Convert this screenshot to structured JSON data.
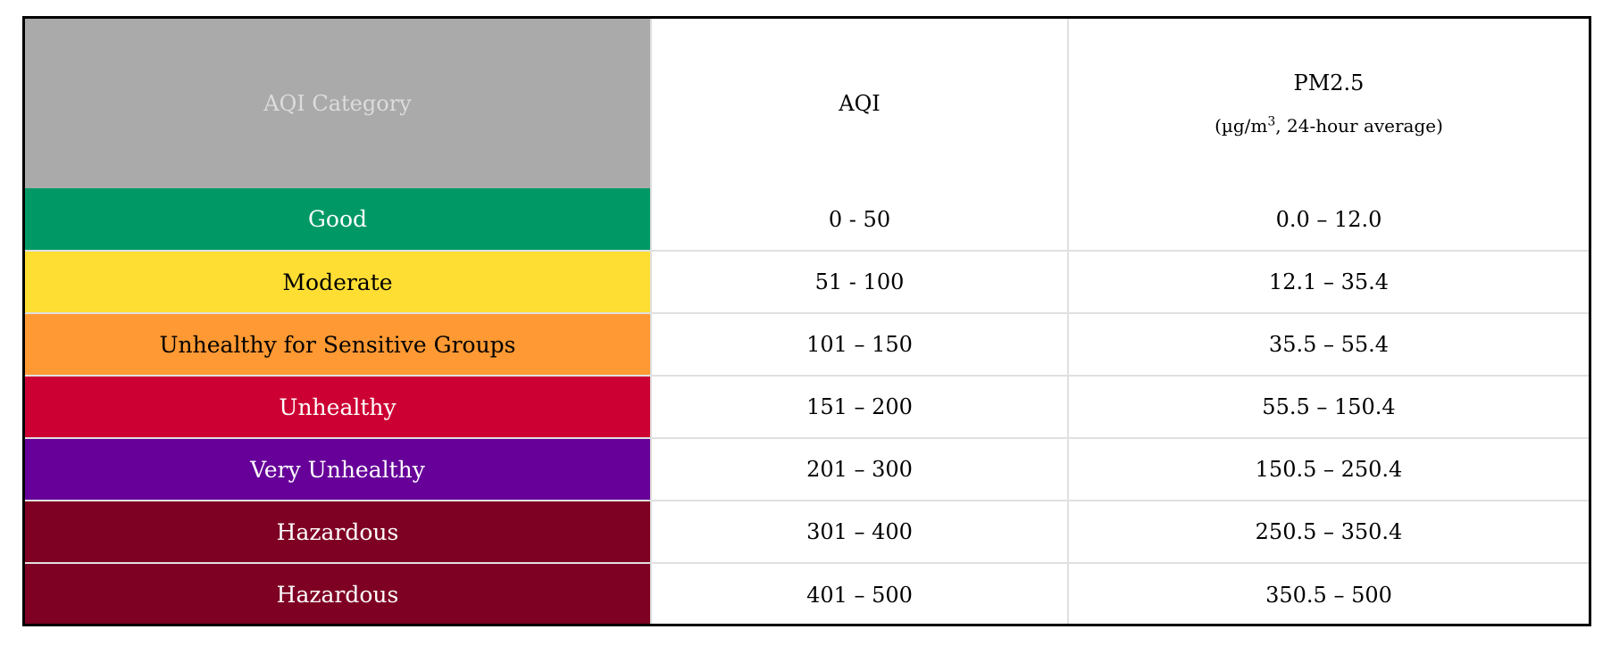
{
  "table": {
    "headers": {
      "category": "AQI Category",
      "aqi": "AQI",
      "pm25_title": "PM2.5",
      "pm25_unit_pre": "(µg/m",
      "pm25_unit_sup": "3",
      "pm25_unit_post": ", 24-hour average)"
    },
    "rows": [
      {
        "category": "Good",
        "aqi": "0 - 50",
        "pm25": "0.0 – 12.0",
        "bg": "#009966",
        "fg": "#ffffff"
      },
      {
        "category": "Moderate",
        "aqi": "51 - 100",
        "pm25": "12.1 – 35.4",
        "bg": "#ffde33",
        "fg": "#000000"
      },
      {
        "category": "Unhealthy for Sensitive Groups",
        "aqi": "101 – 150",
        "pm25": "35.5 – 55.4",
        "bg": "#ff9933",
        "fg": "#000000"
      },
      {
        "category": "Unhealthy",
        "aqi": "151 – 200",
        "pm25": "55.5 – 150.4",
        "bg": "#cc0033",
        "fg": "#ffffff"
      },
      {
        "category": "Very Unhealthy",
        "aqi": "201 – 300",
        "pm25": "150.5 – 250.4",
        "bg": "#660099",
        "fg": "#ffffff"
      },
      {
        "category": "Hazardous",
        "aqi": "301 – 400",
        "pm25": "250.5 – 350.4",
        "bg": "#7e0023",
        "fg": "#ffffff"
      },
      {
        "category": "Hazardous",
        "aqi": "401 – 500",
        "pm25": "350.5 – 500",
        "bg": "#7e0023",
        "fg": "#ffffff"
      }
    ]
  }
}
